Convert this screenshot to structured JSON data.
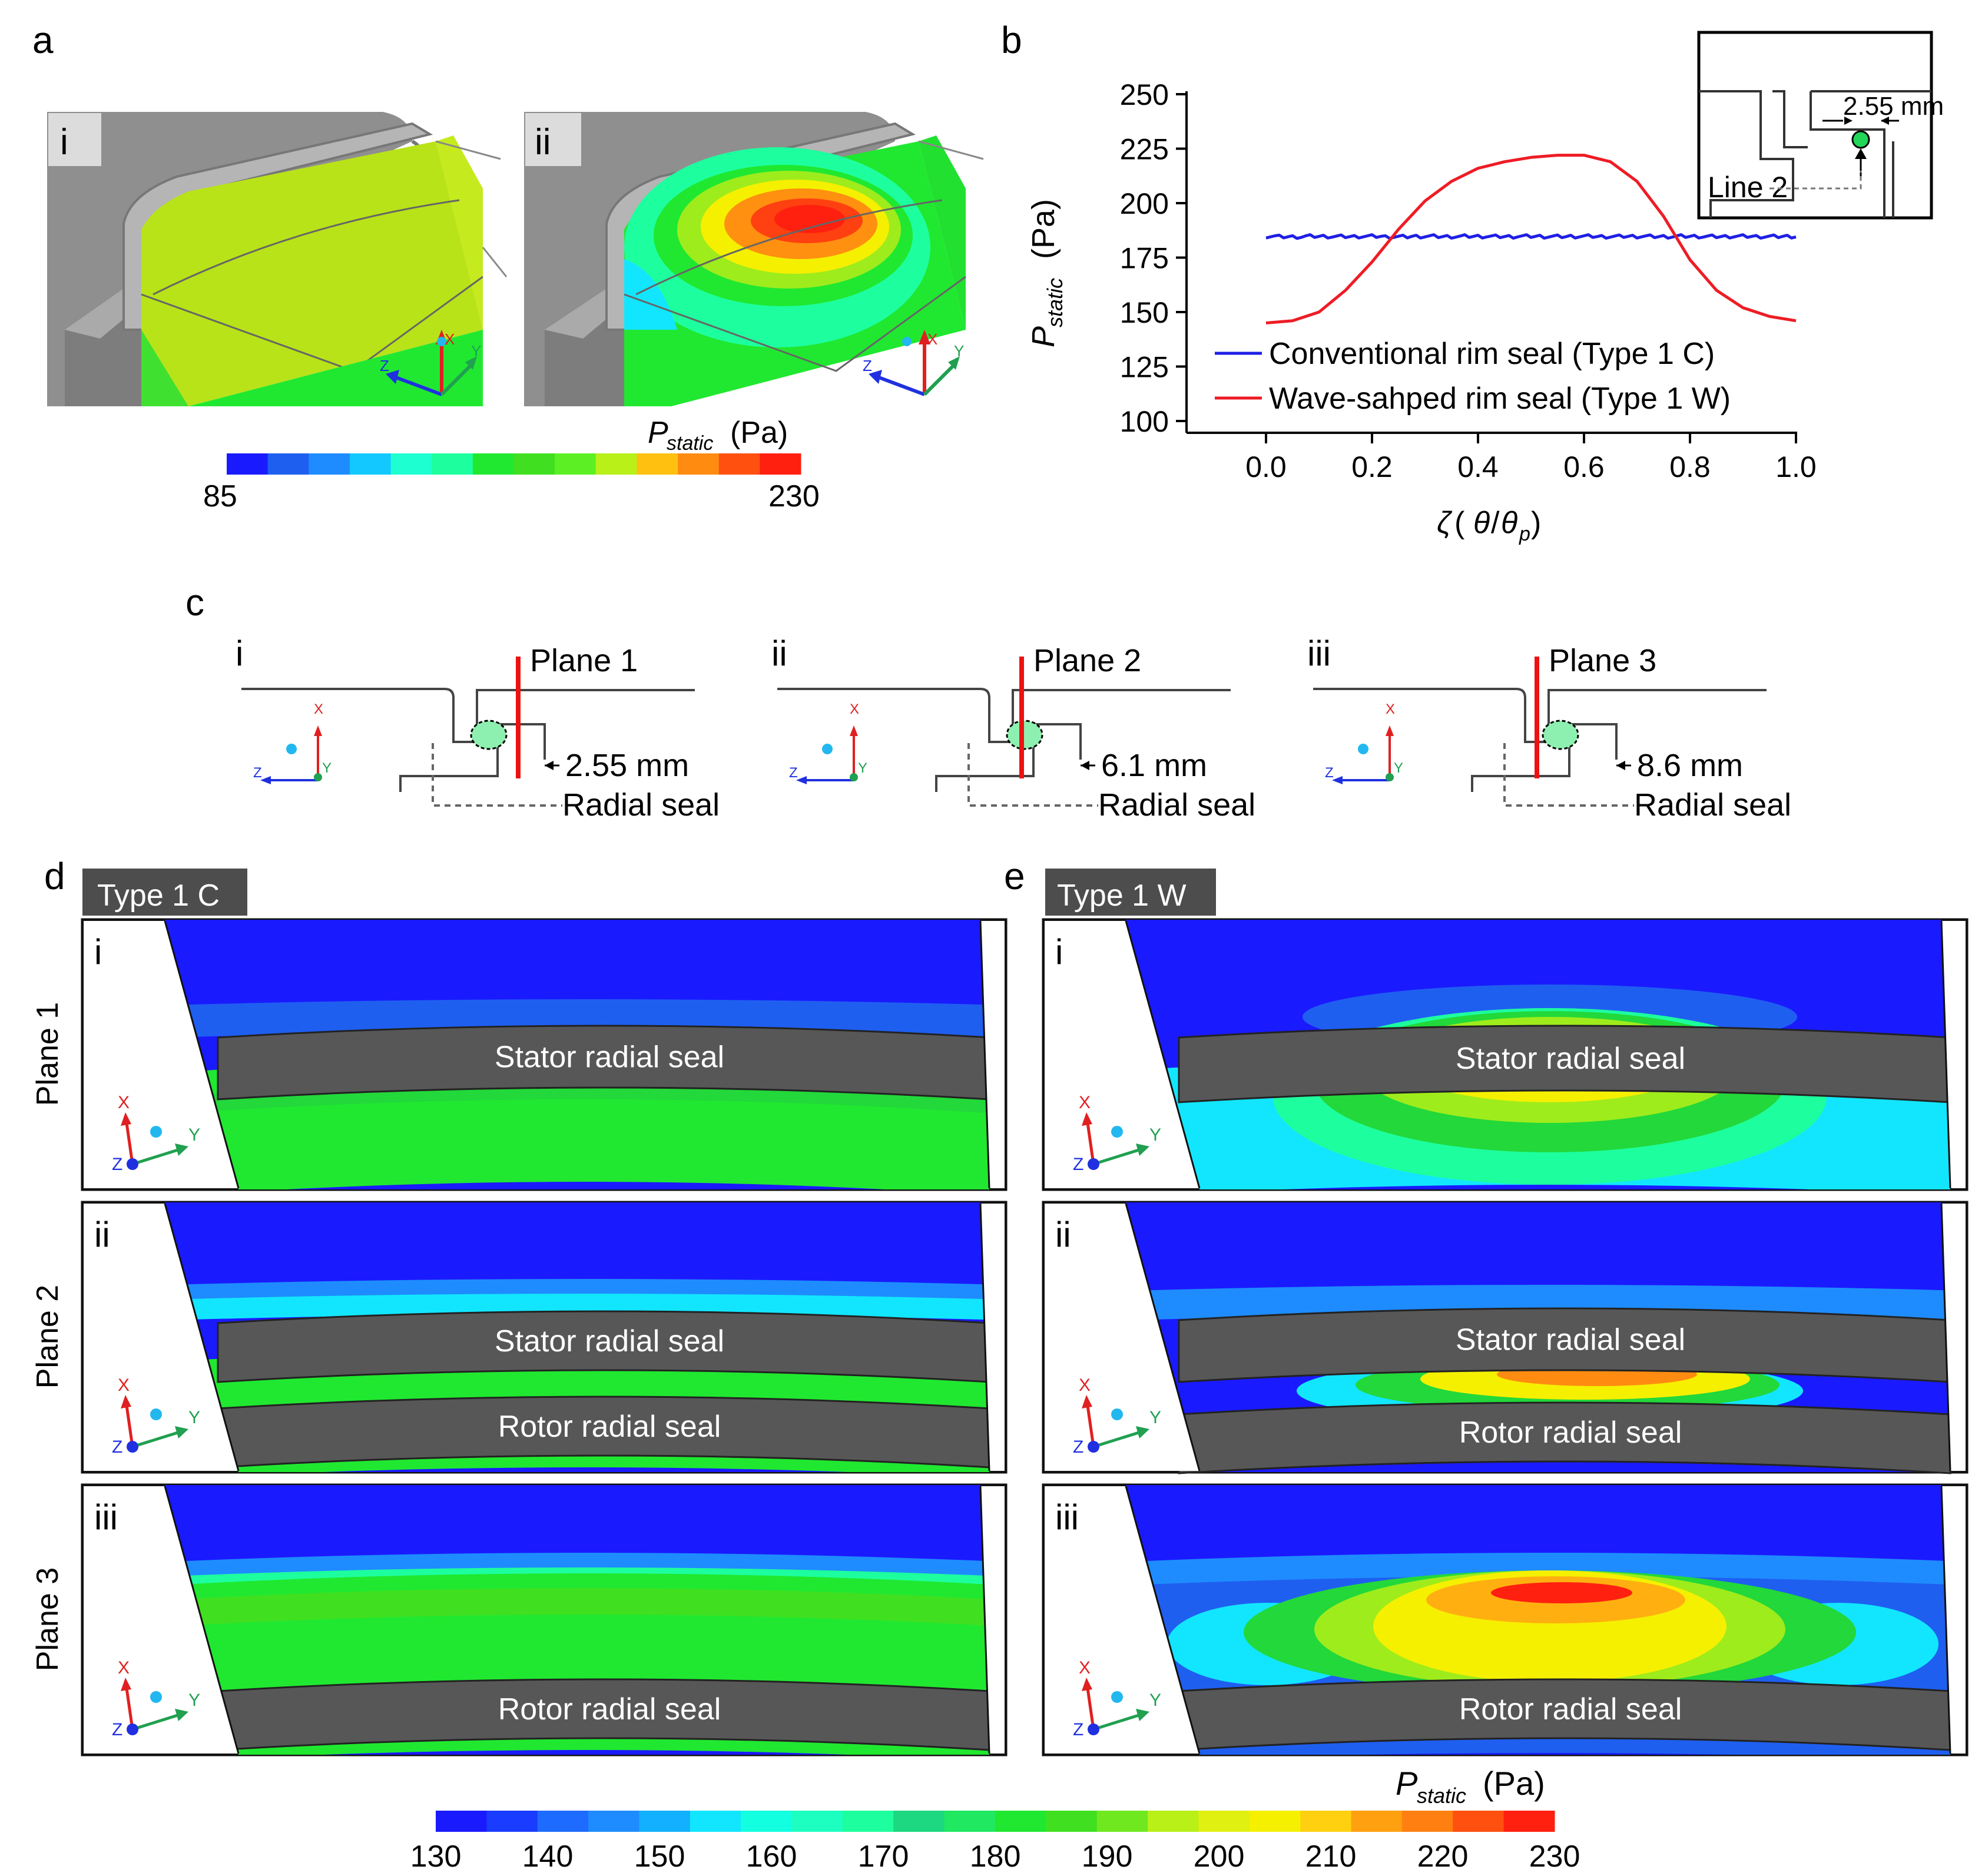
{
  "panel_letters": {
    "a": "a",
    "b": "b",
    "c": "c",
    "d": "d",
    "e": "e"
  },
  "panel_a": {
    "sub_i": "i",
    "sub_ii": "ii",
    "colorbar_label_main": "P",
    "colorbar_label_sub": "static",
    "colorbar_label_unit": "(Pa)",
    "colorbar_min": "85",
    "colorbar_max": "230",
    "axis_x": "X",
    "axis_y": "Y",
    "axis_z": "Z"
  },
  "chart_data": {
    "type": "line",
    "ylabel_main": "P",
    "ylabel_sub": "static",
    "ylabel_unit": "(Pa)",
    "xlabel": "ζ (θ/θp)",
    "xlabel_parts": {
      "zeta": "ζ",
      "open": " (",
      "theta": "θ",
      "slash": "/",
      "theta2": "θ",
      "sub": "p",
      "close": ")"
    },
    "xlim": [
      -0.15,
      1.0
    ],
    "ylim": [
      100,
      250
    ],
    "xticks": [
      "0.0",
      "0.2",
      "0.4",
      "0.6",
      "0.8",
      "1.0"
    ],
    "xtick_values": [
      0.0,
      0.2,
      0.4,
      0.6,
      0.8,
      1.0
    ],
    "yticks": [
      "100",
      "125",
      "150",
      "175",
      "200",
      "225",
      "250"
    ],
    "ytick_values": [
      100,
      125,
      150,
      175,
      200,
      225,
      250
    ],
    "series": [
      {
        "name": "Conventional rim seal (Type 1 C)",
        "color": "#1f1fe6",
        "x": [
          0.0,
          0.05,
          0.1,
          0.15,
          0.2,
          0.25,
          0.3,
          0.35,
          0.4,
          0.45,
          0.5,
          0.55,
          0.6,
          0.65,
          0.7,
          0.75,
          0.8,
          0.85,
          0.9,
          0.95,
          1.0
        ],
        "y": [
          185,
          184,
          185,
          184.5,
          185,
          184,
          185,
          184.5,
          185,
          184.5,
          185,
          184.5,
          185,
          184.5,
          185,
          184.5,
          185,
          184.5,
          185,
          184.5,
          185
        ]
      },
      {
        "name": "Wave-sahped rim seal (Type 1 W)",
        "color": "#ee1c25",
        "x": [
          0.0,
          0.05,
          0.1,
          0.15,
          0.2,
          0.25,
          0.3,
          0.35,
          0.4,
          0.45,
          0.5,
          0.55,
          0.6,
          0.65,
          0.7,
          0.75,
          0.8,
          0.85,
          0.9,
          0.95,
          1.0
        ],
        "y": [
          145,
          146,
          150,
          160,
          173,
          188,
          201,
          210,
          216,
          219,
          221,
          222,
          222,
          219,
          210,
          194,
          174,
          160,
          152,
          148,
          146
        ]
      }
    ],
    "inset": {
      "dimension": "2.55 mm",
      "line_label": "Line 2"
    }
  },
  "panel_c": {
    "items": [
      {
        "roman": "i",
        "plane": "Plane 1",
        "dim": "2.55 mm",
        "seal": "Radial seal"
      },
      {
        "roman": "ii",
        "plane": "Plane 2",
        "dim": "6.1 mm",
        "seal": "Radial seal"
      },
      {
        "roman": "iii",
        "plane": "Plane 3",
        "dim": "8.6 mm",
        "seal": "Radial seal"
      }
    ],
    "axis_x": "X",
    "axis_y": "Y",
    "axis_z": "Z"
  },
  "panel_d": {
    "tag": "Type 1 C"
  },
  "panel_e": {
    "tag": "Type 1 W"
  },
  "rows": [
    {
      "roman": "i",
      "plane": "Plane 1"
    },
    {
      "roman": "ii",
      "plane": "Plane 2"
    },
    {
      "roman": "iii",
      "plane": "Plane 3"
    }
  ],
  "seal_labels": {
    "stator": "Stator radial seal",
    "rotor": "Rotor radial seal"
  },
  "bottom_colorbar": {
    "label_main": "P",
    "label_sub": "static",
    "label_unit": "(Pa)",
    "ticks": [
      "130",
      "140",
      "150",
      "160",
      "170",
      "180",
      "190",
      "200",
      "210",
      "220",
      "230"
    ]
  },
  "colors": {
    "c_blue": "#1a1aff",
    "c_blue2": "#1f5ff0",
    "c_cyan": "#12e6ff",
    "c_teal": "#1dff9e",
    "c_green": "#20e830",
    "c_lgreen": "#5cf024",
    "c_yellow": "#f5f000",
    "c_orange": "#ff8c10",
    "c_red": "#ff2010",
    "seal_gray": "#575757",
    "metal_gray": "#8f8f8f"
  }
}
